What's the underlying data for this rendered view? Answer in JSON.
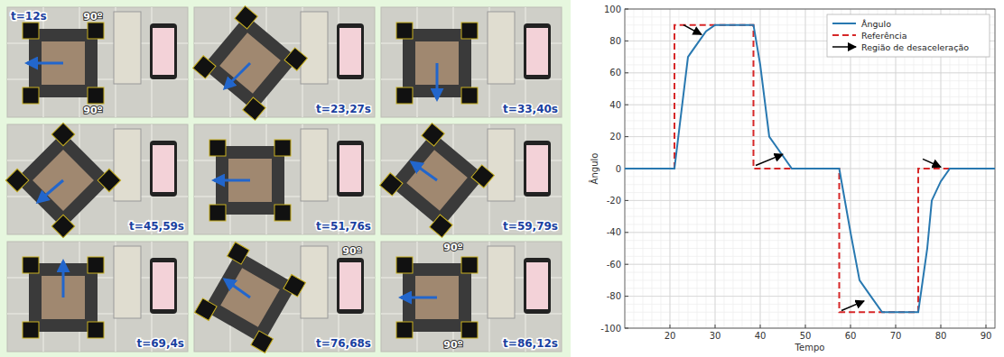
{
  "panels": [
    {
      "label": "t=12s",
      "notes": [
        "90º",
        "90º"
      ]
    },
    {
      "label": "t=23,27s",
      "notes": []
    },
    {
      "label": "t=33,40s",
      "notes": []
    },
    {
      "label": "t=45,59s",
      "notes": []
    },
    {
      "label": "t=51,76s",
      "notes": []
    },
    {
      "label": "t=59,79s",
      "notes": []
    },
    {
      "label": "t=69,4s",
      "notes": []
    },
    {
      "label": "t=76,68s",
      "notes": [
        "90º"
      ]
    },
    {
      "label": "t=86,12s",
      "notes": [
        "90º",
        "90º"
      ]
    }
  ],
  "chart_data": {
    "type": "line",
    "x_label": "Tempo",
    "y_label": "Ângulo",
    "xlim": [
      10,
      92
    ],
    "ylim": [
      -100,
      100
    ],
    "xticks": [
      20,
      30,
      40,
      50,
      60,
      70,
      80,
      90
    ],
    "yticks": [
      -100,
      -80,
      -60,
      -40,
      -20,
      0,
      20,
      40,
      60,
      80,
      100
    ],
    "grid": true,
    "legend": "upper right",
    "series": [
      {
        "name": "Ângulo",
        "color": "#2878b0",
        "line_style": "solid",
        "x": [
          10,
          21,
          24,
          26,
          28,
          30,
          38.5,
          40,
          42,
          44,
          47,
          57.5,
          60,
          62,
          64,
          67,
          75,
          77,
          78,
          80,
          82,
          92
        ],
        "values": [
          0,
          0,
          70,
          78,
          86,
          90,
          90,
          65,
          20,
          12,
          0,
          0,
          -40,
          -70,
          -78,
          -90,
          -90,
          -50,
          -20,
          -8,
          0,
          0
        ]
      },
      {
        "name": "Referência",
        "color": "#d62728",
        "line_style": "dashed",
        "x": [
          10,
          21,
          21,
          38.5,
          38.5,
          57.5,
          57.5,
          75,
          75,
          92
        ],
        "values": [
          0,
          0,
          90,
          90,
          0,
          0,
          -90,
          -90,
          0,
          0
        ]
      }
    ],
    "arrows": {
      "label": "Região de desaceleração",
      "color": "#000000",
      "items": [
        {
          "x": [
            23,
            27
          ],
          "y": [
            90,
            84
          ]
        },
        {
          "x": [
            39,
            45
          ],
          "y": [
            2,
            9
          ]
        },
        {
          "x": [
            58,
            63
          ],
          "y": [
            -89,
            -83
          ]
        },
        {
          "x": [
            76,
            80
          ],
          "y": [
            6,
            1
          ]
        }
      ]
    }
  }
}
